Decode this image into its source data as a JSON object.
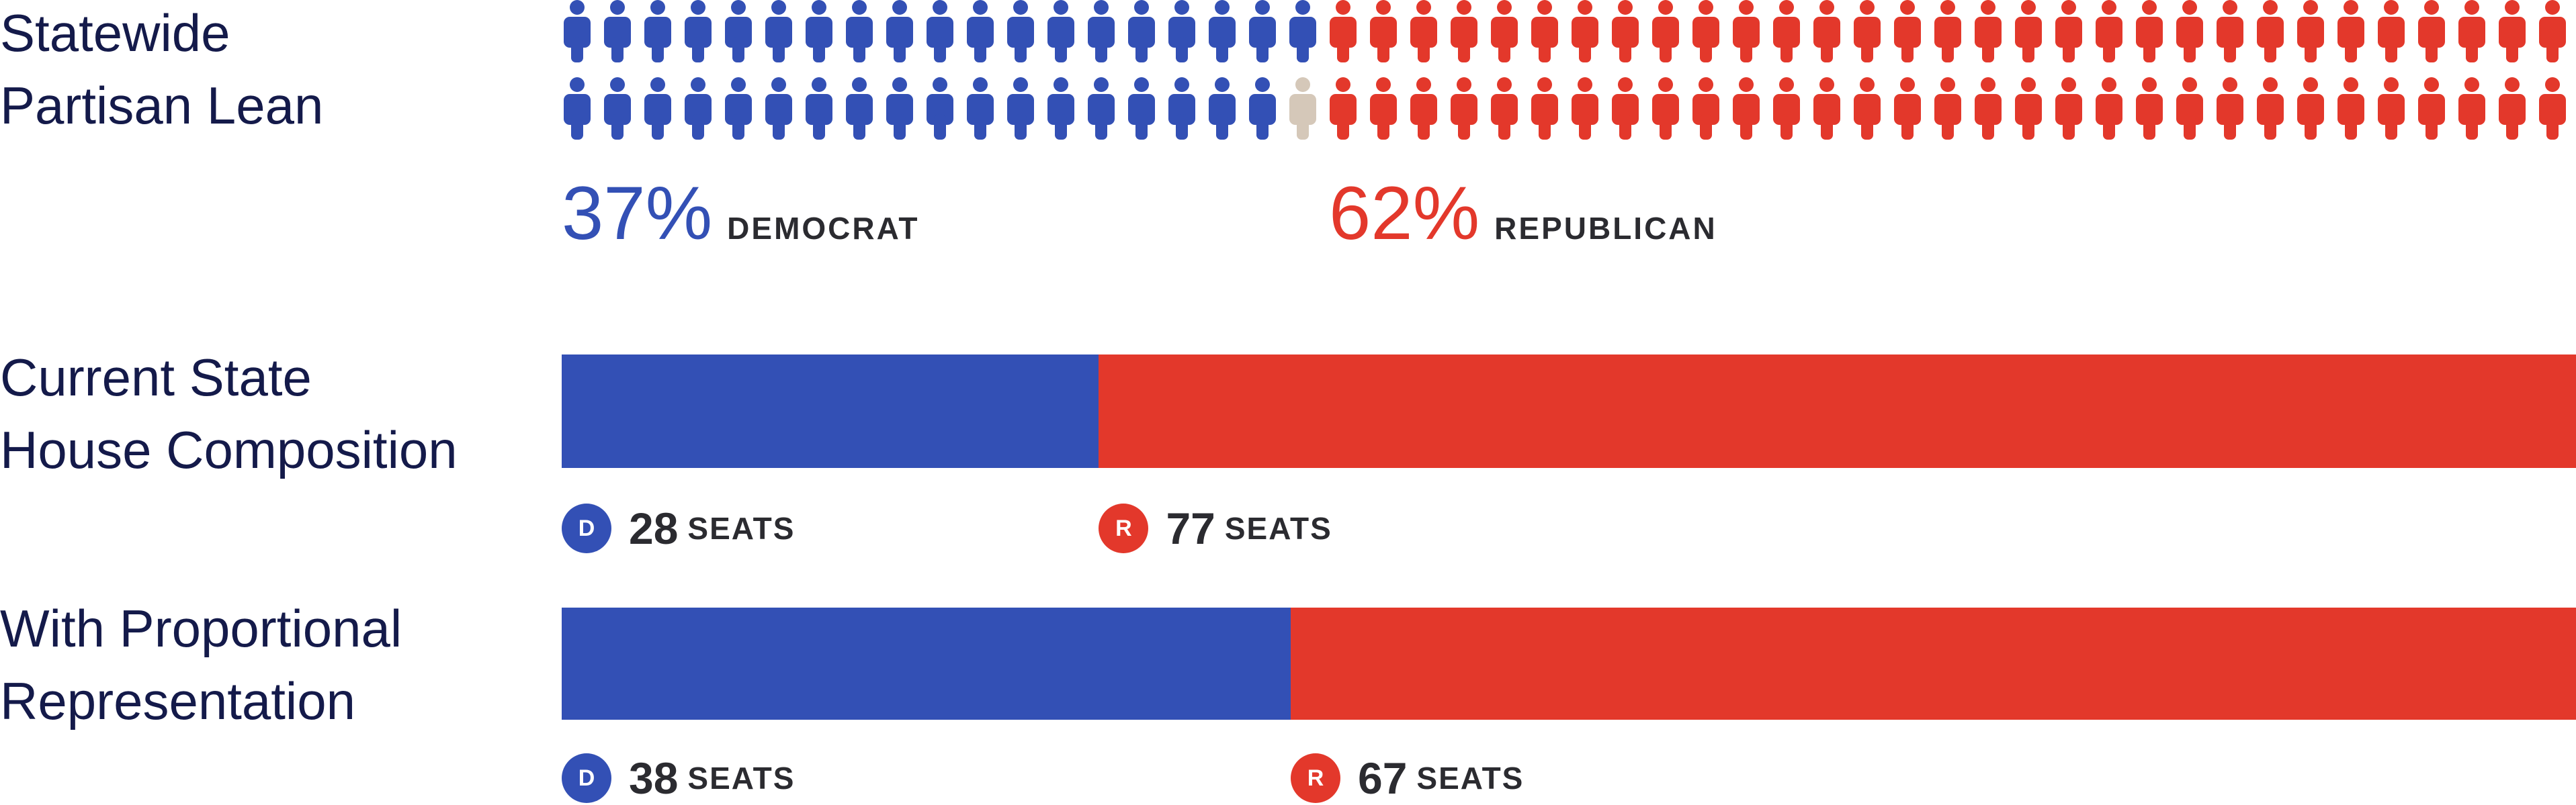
{
  "colors": {
    "dem": "#3350b5",
    "rep": "#e3382b",
    "other": "#d5c8b9"
  },
  "chart_data": [
    {
      "type": "pictogram",
      "title": "Statewide Partisan Lean",
      "title_lines": [
        "Statewide",
        "Partisan Lean"
      ],
      "rows": 2,
      "per_row": 50,
      "layout": [
        {
          "dem": 19,
          "other": 0,
          "rep": 31
        },
        {
          "dem": 18,
          "other": 1,
          "rep": 31
        }
      ],
      "series": [
        {
          "name": "DEMOCRAT",
          "value": 37,
          "label": "37%"
        },
        {
          "name": "REPUBLICAN",
          "value": 62,
          "label": "62%"
        }
      ]
    },
    {
      "type": "bar",
      "stacked": true,
      "title": "Current State House Composition",
      "title_lines": [
        "Current State",
        "House Composition"
      ],
      "series": [
        {
          "name": "D",
          "value": 28,
          "label": "28",
          "unit": "SEATS"
        },
        {
          "name": "R",
          "value": 77,
          "label": "77",
          "unit": "SEATS"
        }
      ]
    },
    {
      "type": "bar",
      "stacked": true,
      "title": "With Proportional Representation",
      "title_lines": [
        "With Proportional",
        "Representation"
      ],
      "series": [
        {
          "name": "D",
          "value": 38,
          "label": "38",
          "unit": "SEATS"
        },
        {
          "name": "R",
          "value": 67,
          "label": "67",
          "unit": "SEATS"
        }
      ]
    }
  ]
}
